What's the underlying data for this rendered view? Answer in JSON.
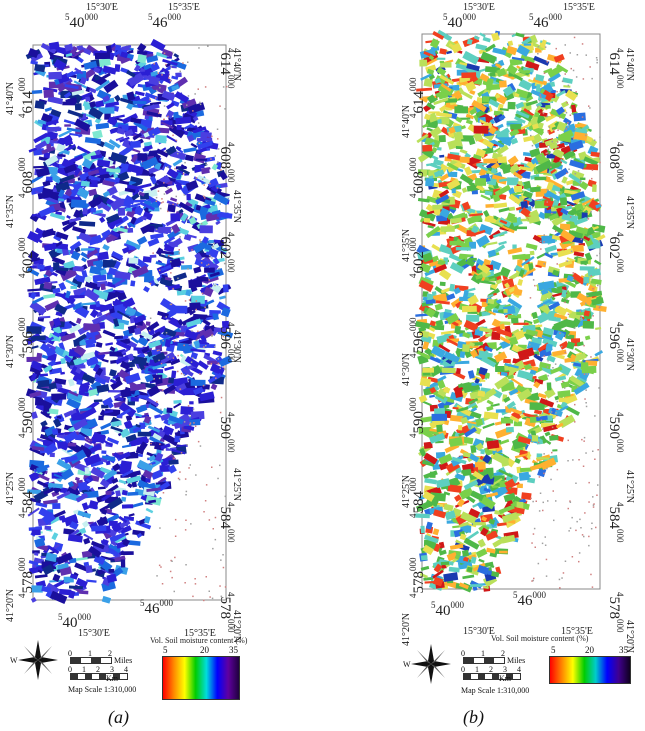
{
  "panels": [
    {
      "id": "a",
      "caption": "(a)",
      "palette": [
        "#1a0f9c",
        "#2b1fd4",
        "#3140ee",
        "#4a3fe0",
        "#5f2fb0",
        "#1b6ae0",
        "#0f2a8a",
        "#3aa0e8",
        "#5cd0e0",
        "#7ee8d0",
        "#c8f0f0"
      ],
      "palette_weights": [
        9,
        9,
        8,
        6,
        5,
        5,
        4,
        3,
        2,
        1,
        1
      ],
      "ramp_gradient": "linear-gradient(to right, #ff0000, #ff8800, #ffff00, #00cc00, #00dddd, #0000ff, #6000a0, #200040)"
    },
    {
      "id": "b",
      "caption": "(b)",
      "palette": [
        "#4fb848",
        "#7ad04a",
        "#b9e05a",
        "#5dcfc0",
        "#3aa8e0",
        "#e8e050",
        "#ffb030",
        "#f04020",
        "#d01818",
        "#2a6ee0",
        "#1a3ab0"
      ],
      "palette_weights": [
        10,
        8,
        6,
        7,
        5,
        5,
        4,
        4,
        3,
        2,
        1
      ],
      "ramp_gradient": "linear-gradient(to right, #ff0000, #ff8000, #ffff00, #00cc00, #00cccc, #0000ff, #400090, #100020)"
    }
  ],
  "axes": {
    "top_lon_1": "15°30'E",
    "top_lon_2": "15°35'E",
    "bottom_lon_1": "15°30'E",
    "bottom_lon_2": "15°35'E",
    "utm_e_prefix": "5",
    "utm_e1": "40",
    "utm_e2": "46",
    "utm_sup": "000",
    "utm_n_prefix": "4",
    "utm_n_values": [
      "614",
      "608",
      "602",
      "596",
      "590",
      "584",
      "578"
    ],
    "lat_left": [
      "41°40'N",
      "41°35'N",
      "41°30'N",
      "41°25'N",
      "41°20'N"
    ],
    "lat_right": [
      "41°40'N",
      "41°35'N",
      "41°30'N",
      "41°25'N",
      "41°20'N"
    ]
  },
  "legend": {
    "title": "Vol. Soil moisture content (%)",
    "ticks": [
      "5",
      "20",
      "35"
    ],
    "miles_label": "Miles",
    "km_label": "Km",
    "miles_ticks": [
      "0",
      "1",
      "2"
    ],
    "km_ticks": [
      "0",
      "1",
      "2",
      "3",
      "4"
    ],
    "scale_text": "Map Scale 1:310,000",
    "compass": {
      "n": "N",
      "s": "S",
      "e": "E",
      "w": "W"
    }
  }
}
